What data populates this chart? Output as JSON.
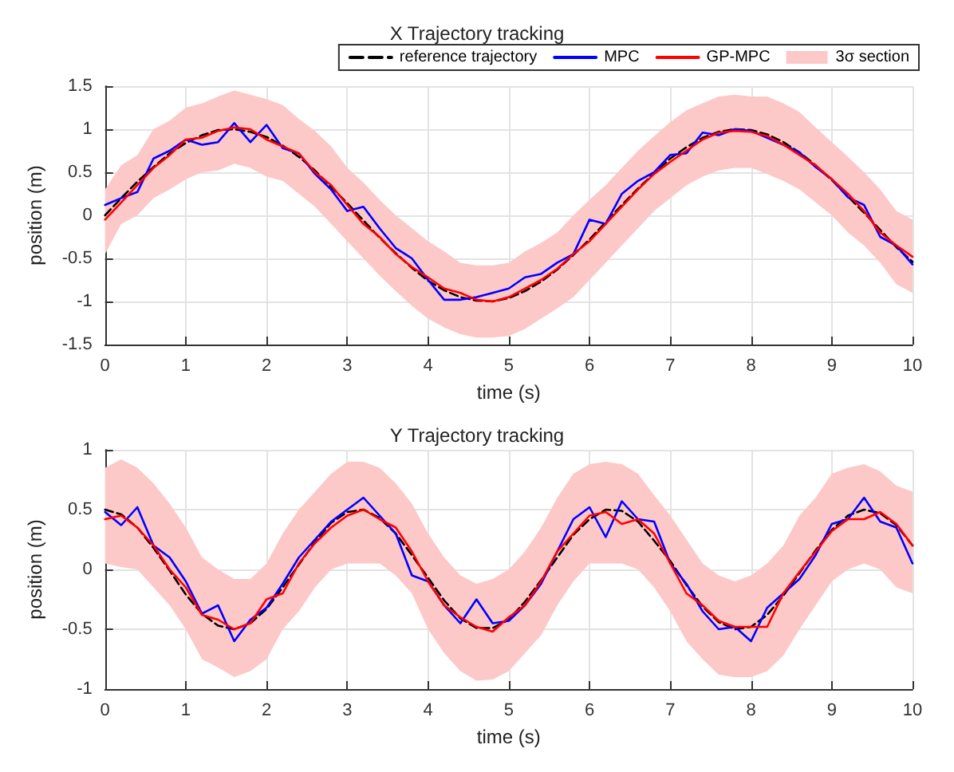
{
  "chart_data": [
    {
      "type": "line",
      "title": "X Trajectory tracking",
      "xlabel": "time (s)",
      "ylabel": "position (m)",
      "xlim": [
        0,
        10
      ],
      "xticks": [
        0,
        1,
        2,
        3,
        4,
        5,
        6,
        7,
        8,
        9,
        10
      ],
      "ylim": [
        -1.5,
        1.5
      ],
      "yticks": [
        -1.5,
        -1,
        -0.5,
        0,
        0.5,
        1,
        1.5
      ],
      "grid": true,
      "legend": "top right",
      "marker": "none",
      "x": [
        0,
        0.2,
        0.4,
        0.6,
        0.8,
        1,
        1.2,
        1.4,
        1.6,
        1.8,
        2,
        2.2,
        2.4,
        2.6,
        2.8,
        3,
        3.2,
        3.4,
        3.6,
        3.8,
        4,
        4.2,
        4.4,
        4.6,
        4.8,
        5,
        5.2,
        5.4,
        5.6,
        5.8,
        6,
        6.2,
        6.4,
        6.6,
        6.8,
        7,
        7.2,
        7.4,
        7.6,
        7.8,
        8,
        8.2,
        8.4,
        8.6,
        8.8,
        9,
        9.2,
        9.4,
        9.6,
        9.8,
        10
      ],
      "series": [
        {
          "name": "reference trajectory",
          "type": "line",
          "color": "#000000",
          "line_style": "dashed",
          "values": [
            0,
            0.2,
            0.39,
            0.56,
            0.72,
            0.84,
            0.93,
            0.99,
            1,
            0.97,
            0.91,
            0.81,
            0.68,
            0.52,
            0.33,
            0.14,
            -0.06,
            -0.26,
            -0.44,
            -0.61,
            -0.76,
            -0.87,
            -0.95,
            -0.99,
            -1,
            -0.96,
            -0.88,
            -0.77,
            -0.63,
            -0.46,
            -0.28,
            -0.08,
            0.12,
            0.31,
            0.49,
            0.66,
            0.79,
            0.9,
            0.97,
            1,
            0.99,
            0.94,
            0.85,
            0.73,
            0.58,
            0.41,
            0.22,
            0.03,
            -0.17,
            -0.37,
            -0.54
          ]
        },
        {
          "name": "MPC",
          "type": "line",
          "color": "#0000ff",
          "line_style": "solid",
          "values": [
            0.12,
            0.2,
            0.27,
            0.66,
            0.75,
            0.88,
            0.82,
            0.85,
            1.07,
            0.85,
            1.05,
            0.78,
            0.72,
            0.48,
            0.3,
            0.05,
            0.1,
            -0.15,
            -0.38,
            -0.5,
            -0.75,
            -0.98,
            -0.98,
            -0.95,
            -0.9,
            -0.85,
            -0.72,
            -0.68,
            -0.55,
            -0.45,
            -0.05,
            -0.1,
            0.25,
            0.4,
            0.5,
            0.7,
            0.72,
            0.96,
            0.93,
            1,
            0.98,
            0.9,
            0.82,
            0.73,
            0.56,
            0.42,
            0.21,
            0.12,
            -0.25,
            -0.35,
            -0.57
          ]
        },
        {
          "name": "GP-MPC",
          "type": "line",
          "color": "#ff0000",
          "line_style": "solid",
          "values": [
            -0.05,
            0.15,
            0.35,
            0.55,
            0.7,
            0.88,
            0.9,
            0.98,
            1.02,
            1,
            0.88,
            0.8,
            0.72,
            0.5,
            0.35,
            0.12,
            -0.1,
            -0.25,
            -0.45,
            -0.6,
            -0.72,
            -0.85,
            -0.9,
            -0.98,
            -1,
            -0.95,
            -0.85,
            -0.75,
            -0.62,
            -0.45,
            -0.3,
            -0.1,
            0.1,
            0.3,
            0.48,
            0.62,
            0.75,
            0.88,
            0.96,
            0.98,
            0.97,
            0.92,
            0.82,
            0.7,
            0.58,
            0.42,
            0.25,
            0.05,
            -0.2,
            -0.35,
            -0.48
          ]
        },
        {
          "name": "3σ section",
          "type": "area",
          "color": "#fcc8c8",
          "values": [
            null,
            null,
            null,
            null,
            null,
            null,
            null,
            null,
            null,
            null,
            null,
            null,
            null,
            null,
            null,
            null,
            null,
            null,
            null,
            null,
            null,
            null,
            null,
            null,
            null,
            null,
            null,
            null,
            null,
            null,
            null,
            null,
            null,
            null,
            null,
            null,
            null,
            null,
            null,
            null,
            null,
            null,
            null,
            null,
            null,
            null,
            null,
            null,
            null,
            null,
            null
          ],
          "upper": [
            0.3,
            0.58,
            0.7,
            1,
            1.1,
            1.25,
            1.3,
            1.38,
            1.45,
            1.4,
            1.35,
            1.28,
            1.12,
            0.98,
            0.8,
            0.55,
            0.38,
            0.18,
            0,
            -0.15,
            -0.3,
            -0.42,
            -0.55,
            -0.58,
            -0.58,
            -0.55,
            -0.42,
            -0.32,
            -0.2,
            0,
            0.18,
            0.35,
            0.55,
            0.75,
            0.92,
            1.08,
            1.22,
            1.3,
            1.38,
            1.4,
            1.38,
            1.38,
            1.3,
            1.2,
            1.02,
            0.85,
            0.68,
            0.5,
            0.3,
            0.05,
            -0.05
          ],
          "lower": [
            -0.45,
            -0.1,
            0,
            0.2,
            0.3,
            0.42,
            0.5,
            0.52,
            0.6,
            0.55,
            0.45,
            0.4,
            0.25,
            0.1,
            -0.1,
            -0.3,
            -0.5,
            -0.7,
            -0.88,
            -1.05,
            -1.2,
            -1.3,
            -1.38,
            -1.42,
            -1.42,
            -1.4,
            -1.32,
            -1.2,
            -1.08,
            -0.95,
            -0.75,
            -0.55,
            -0.35,
            -0.15,
            0.05,
            0.2,
            0.35,
            0.45,
            0.52,
            0.55,
            0.55,
            0.48,
            0.4,
            0.3,
            0.15,
            0,
            -0.2,
            -0.35,
            -0.55,
            -0.8,
            -0.9
          ]
        }
      ]
    },
    {
      "type": "line",
      "title": "Y Trajectory tracking",
      "xlabel": "time (s)",
      "ylabel": "position (m)",
      "xlim": [
        0,
        10
      ],
      "xticks": [
        0,
        1,
        2,
        3,
        4,
        5,
        6,
        7,
        8,
        9,
        10
      ],
      "ylim": [
        -1,
        1
      ],
      "yticks": [
        -1,
        -0.5,
        0,
        0.5,
        1
      ],
      "grid": true,
      "marker": "none",
      "x": [
        0,
        0.2,
        0.4,
        0.6,
        0.8,
        1,
        1.2,
        1.4,
        1.6,
        1.8,
        2,
        2.2,
        2.4,
        2.6,
        2.8,
        3,
        3.2,
        3.4,
        3.6,
        3.8,
        4,
        4.2,
        4.4,
        4.6,
        4.8,
        5,
        5.2,
        5.4,
        5.6,
        5.8,
        6,
        6.2,
        6.4,
        6.6,
        6.8,
        7,
        7.2,
        7.4,
        7.6,
        7.8,
        8,
        8.2,
        8.4,
        8.6,
        8.8,
        9,
        9.2,
        9.4,
        9.6,
        9.8,
        10
      ],
      "series": [
        {
          "type": "line",
          "color": "#000000",
          "line_style": "dashed",
          "values": [
            0.5,
            0.46,
            0.35,
            0.18,
            -0.01,
            -0.21,
            -0.37,
            -0.47,
            -0.5,
            -0.45,
            -0.33,
            -0.15,
            0.04,
            0.23,
            0.39,
            0.48,
            0.5,
            0.43,
            0.3,
            0.12,
            -0.07,
            -0.26,
            -0.41,
            -0.49,
            -0.49,
            -0.42,
            -0.27,
            -0.09,
            0.1,
            0.29,
            0.42,
            0.5,
            0.49,
            0.4,
            0.24,
            0.07,
            -0.13,
            -0.31,
            -0.44,
            -0.5,
            -0.48,
            -0.38,
            -0.22,
            -0.03,
            0.16,
            0.33,
            0.45,
            0.5,
            0.47,
            0.37,
            0.2
          ]
        },
        {
          "type": "line",
          "color": "#0000ff",
          "line_style": "solid",
          "values": [
            0.48,
            0.37,
            0.52,
            0.2,
            0.1,
            -0.1,
            -0.37,
            -0.3,
            -0.6,
            -0.42,
            -0.32,
            -0.12,
            0.1,
            0.25,
            0.4,
            0.5,
            0.6,
            0.45,
            0.3,
            -0.05,
            -0.1,
            -0.3,
            -0.45,
            -0.25,
            -0.45,
            -0.43,
            -0.3,
            -0.12,
            0.15,
            0.42,
            0.52,
            0.27,
            0.57,
            0.42,
            0.4,
            0.05,
            -0.12,
            -0.35,
            -0.5,
            -0.48,
            -0.6,
            -0.32,
            -0.2,
            -0.08,
            0.12,
            0.38,
            0.42,
            0.6,
            0.4,
            0.35,
            0.05
          ]
        },
        {
          "type": "line",
          "color": "#ff0000",
          "line_style": "solid",
          "values": [
            0.42,
            0.45,
            0.35,
            0.2,
            0,
            -0.15,
            -0.38,
            -0.42,
            -0.5,
            -0.45,
            -0.25,
            -0.2,
            0.05,
            0.22,
            0.35,
            0.45,
            0.5,
            0.42,
            0.35,
            0.15,
            -0.1,
            -0.3,
            -0.4,
            -0.48,
            -0.52,
            -0.4,
            -0.3,
            -0.1,
            0.15,
            0.3,
            0.45,
            0.48,
            0.38,
            0.42,
            0.3,
            0.05,
            -0.2,
            -0.3,
            -0.43,
            -0.48,
            -0.48,
            -0.48,
            -0.2,
            -0.02,
            0.15,
            0.32,
            0.42,
            0.42,
            0.48,
            0.38,
            0.2
          ]
        },
        {
          "type": "area",
          "color": "#fcc8c8",
          "values": [
            null,
            null,
            null,
            null,
            null,
            null,
            null,
            null,
            null,
            null,
            null,
            null,
            null,
            null,
            null,
            null,
            null,
            null,
            null,
            null,
            null,
            null,
            null,
            null,
            null,
            null,
            null,
            null,
            null,
            null,
            null,
            null,
            null,
            null,
            null,
            null,
            null,
            null,
            null,
            null,
            null,
            null,
            null,
            null,
            null,
            null,
            null,
            null,
            null,
            null,
            null
          ],
          "upper": [
            0.85,
            0.92,
            0.85,
            0.72,
            0.55,
            0.35,
            0.1,
            0,
            -0.08,
            -0.08,
            0.05,
            0.3,
            0.5,
            0.65,
            0.8,
            0.9,
            0.9,
            0.85,
            0.72,
            0.55,
            0.3,
            0.1,
            -0.05,
            -0.12,
            -0.08,
            0,
            0.15,
            0.35,
            0.6,
            0.8,
            0.88,
            0.9,
            0.88,
            0.8,
            0.62,
            0.45,
            0.25,
            0.05,
            -0.05,
            -0.1,
            -0.05,
            0.05,
            0.2,
            0.45,
            0.6,
            0.8,
            0.85,
            0.88,
            0.82,
            0.7,
            0.65
          ],
          "lower": [
            0.05,
            0.02,
            0,
            -0.15,
            -0.3,
            -0.5,
            -0.75,
            -0.82,
            -0.9,
            -0.85,
            -0.75,
            -0.5,
            -0.35,
            -0.15,
            0,
            0.05,
            0.05,
            0.05,
            -0.05,
            -0.2,
            -0.5,
            -0.7,
            -0.85,
            -0.93,
            -0.92,
            -0.85,
            -0.7,
            -0.55,
            -0.3,
            -0.1,
            0.05,
            0.05,
            0.05,
            0,
            -0.15,
            -0.35,
            -0.6,
            -0.75,
            -0.88,
            -0.9,
            -0.9,
            -0.85,
            -0.72,
            -0.5,
            -0.3,
            -0.1,
            0,
            0.05,
            0,
            -0.15,
            -0.2
          ]
        }
      ]
    }
  ]
}
